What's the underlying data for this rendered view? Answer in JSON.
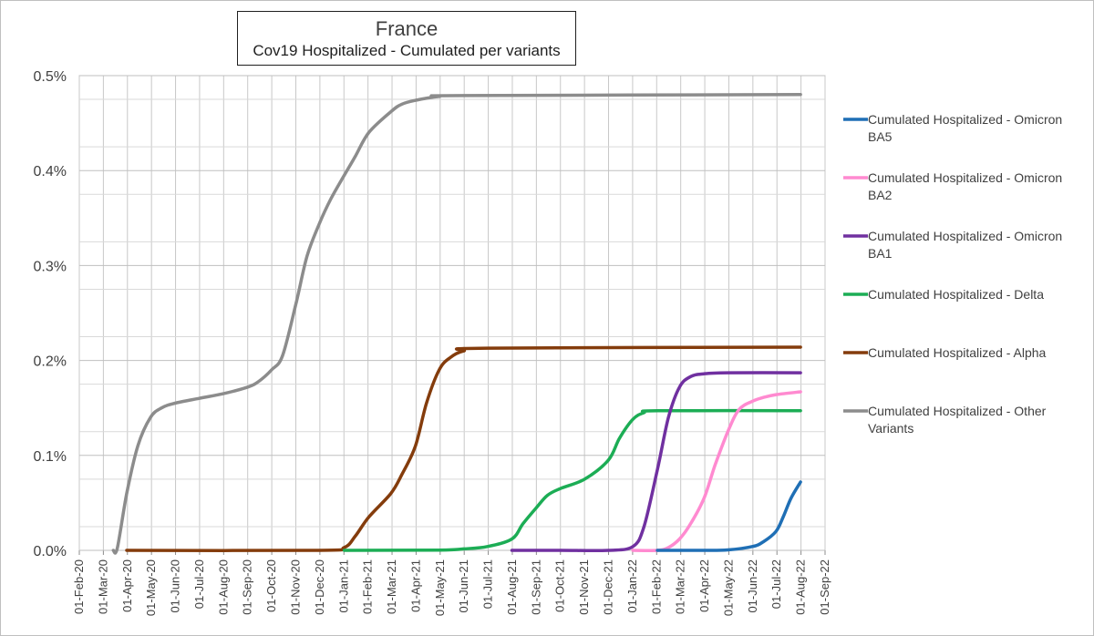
{
  "chart_data": {
    "type": "line",
    "title": "France",
    "subtitle": "Cov19 Hospitalized  - Cumulated per variants",
    "xlabel": "",
    "ylabel": "",
    "x_ticks": [
      "01-Feb-20",
      "01-Mar-20",
      "01-Apr-20",
      "01-May-20",
      "01-Jun-20",
      "01-Jul-20",
      "01-Aug-20",
      "01-Sep-20",
      "01-Oct-20",
      "01-Nov-20",
      "01-Dec-20",
      "01-Jan-21",
      "01-Feb-21",
      "01-Mar-21",
      "01-Apr-21",
      "01-May-21",
      "01-Jun-21",
      "01-Jul-21",
      "01-Aug-21",
      "01-Sep-21",
      "01-Oct-21",
      "01-Nov-21",
      "01-Dec-21",
      "01-Jan-22",
      "01-Feb-22",
      "01-Mar-22",
      "01-Apr-22",
      "01-May-22",
      "01-Jun-22",
      "01-Jul-22",
      "01-Aug-22",
      "01-Sep-22"
    ],
    "y_ticks": [
      "0.0%",
      "0.1%",
      "0.2%",
      "0.3%",
      "0.4%",
      "0.5%"
    ],
    "ylim": [
      0,
      0.5
    ],
    "y_unit": "%",
    "grid": true,
    "legend_position": "right",
    "series": [
      {
        "name": "Cumulated Hospitalized - Omicron BA5",
        "color": "#1f6fb5",
        "x": [
          "2022-02-01",
          "2022-03-01",
          "2022-04-01",
          "2022-05-01",
          "2022-06-01",
          "2022-06-15",
          "2022-07-01",
          "2022-07-10",
          "2022-07-20",
          "2022-08-01"
        ],
        "y": [
          0,
          0,
          0,
          0.0005,
          0.004,
          0.009,
          0.02,
          0.035,
          0.055,
          0.072
        ]
      },
      {
        "name": "Cumulated Hospitalized - Omicron BA2",
        "color": "#ff8ad0",
        "x": [
          "2022-01-01",
          "2022-02-01",
          "2022-02-15",
          "2022-03-01",
          "2022-03-15",
          "2022-04-01",
          "2022-04-15",
          "2022-05-01",
          "2022-05-15",
          "2022-06-01",
          "2022-06-15",
          "2022-07-01",
          "2022-08-01"
        ],
        "y": [
          0,
          0,
          0.003,
          0.012,
          0.028,
          0.055,
          0.09,
          0.125,
          0.148,
          0.157,
          0.161,
          0.164,
          0.167
        ]
      },
      {
        "name": "Cumulated Hospitalized - Omicron BA1",
        "color": "#7030a0",
        "x": [
          "2021-08-01",
          "2021-10-01",
          "2021-12-01",
          "2022-01-01",
          "2022-01-15",
          "2022-02-01",
          "2022-02-15",
          "2022-03-01",
          "2022-03-15",
          "2022-04-01",
          "2022-05-01",
          "2022-08-01"
        ],
        "y": [
          0,
          0,
          0,
          0.004,
          0.025,
          0.085,
          0.14,
          0.172,
          0.183,
          0.186,
          0.187,
          0.187
        ]
      },
      {
        "name": "Cumulated Hospitalized - Delta",
        "color": "#1cad55",
        "x": [
          "2021-01-01",
          "2021-05-01",
          "2021-06-01",
          "2021-07-01",
          "2021-08-01",
          "2021-08-15",
          "2021-09-01",
          "2021-09-15",
          "2021-10-01",
          "2021-11-01",
          "2021-12-01",
          "2021-12-15",
          "2022-01-01",
          "2022-01-15",
          "2022-02-01",
          "2022-08-01"
        ],
        "y": [
          0,
          0.0003,
          0.0015,
          0.004,
          0.012,
          0.028,
          0.045,
          0.058,
          0.065,
          0.075,
          0.095,
          0.118,
          0.138,
          0.145,
          0.147,
          0.147
        ]
      },
      {
        "name": "Cumulated Hospitalized - Alpha",
        "color": "#843c0c",
        "x": [
          "2020-04-01",
          "2020-12-01",
          "2021-01-01",
          "2021-01-15",
          "2021-02-01",
          "2021-03-01",
          "2021-03-15",
          "2021-04-01",
          "2021-04-15",
          "2021-05-01",
          "2021-05-15",
          "2021-06-01",
          "2021-07-01",
          "2022-08-01"
        ],
        "y": [
          0,
          0,
          0.003,
          0.015,
          0.035,
          0.06,
          0.08,
          0.11,
          0.155,
          0.19,
          0.203,
          0.21,
          0.213,
          0.214
        ]
      },
      {
        "name": "Cumulated Hospitalized - Other Variants",
        "color": "#8c8c8c",
        "x": [
          "2020-03-15",
          "2020-03-20",
          "2020-04-01",
          "2020-04-15",
          "2020-05-01",
          "2020-05-15",
          "2020-06-01",
          "2020-07-01",
          "2020-08-01",
          "2020-09-01",
          "2020-09-15",
          "2020-10-01",
          "2020-10-15",
          "2020-11-01",
          "2020-11-15",
          "2020-12-01",
          "2020-12-15",
          "2021-01-01",
          "2021-01-15",
          "2021-02-01",
          "2021-03-01",
          "2021-03-15",
          "2021-04-01",
          "2021-05-01",
          "2021-06-01",
          "2022-08-01"
        ],
        "y": [
          0,
          0.002,
          0.06,
          0.11,
          0.14,
          0.15,
          0.155,
          0.16,
          0.165,
          0.172,
          0.178,
          0.19,
          0.205,
          0.26,
          0.31,
          0.345,
          0.37,
          0.395,
          0.415,
          0.44,
          0.462,
          0.47,
          0.474,
          0.478,
          0.479,
          0.48
        ]
      }
    ]
  }
}
